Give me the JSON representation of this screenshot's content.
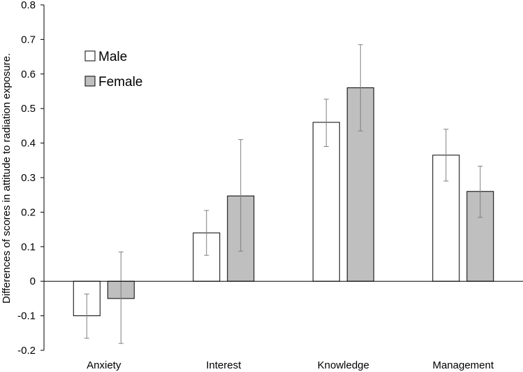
{
  "chart_data": {
    "type": "bar",
    "title": "",
    "xlabel": "",
    "ylabel": "Differences of scores in attitude to radiation exposure.",
    "ylim": [
      -0.2,
      0.8
    ],
    "ytick_step": 0.1,
    "yticks": [
      "-0.2",
      "-0.1",
      "0",
      "0.1",
      "0.2",
      "0.3",
      "0.4",
      "0.5",
      "0.6",
      "0.7",
      "0.8"
    ],
    "categories": [
      "Anxiety",
      "Interest",
      "Knowledge",
      "Management"
    ],
    "series": [
      {
        "name": "Male",
        "color": "#ffffff",
        "values": [
          -0.1,
          0.14,
          0.46,
          0.365
        ],
        "error_low": [
          -0.165,
          0.075,
          0.39,
          0.29
        ],
        "error_high": [
          -0.037,
          0.205,
          0.527,
          0.44
        ]
      },
      {
        "name": "Female",
        "color": "#bfbfbf",
        "values": [
          -0.05,
          0.247,
          0.56,
          0.26
        ],
        "error_low": [
          -0.18,
          0.087,
          0.435,
          0.185
        ],
        "error_high": [
          0.085,
          0.41,
          0.685,
          0.333
        ]
      }
    ],
    "legend_position": "top-left",
    "grid": false
  }
}
